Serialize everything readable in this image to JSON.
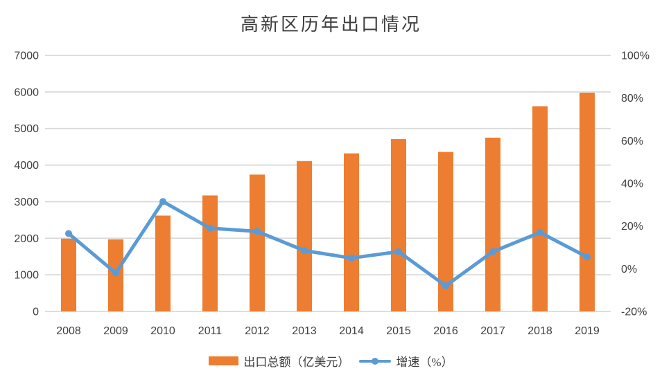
{
  "chart_data": {
    "type": "combo",
    "title": "高新区历年出口情况",
    "categories": [
      "2008",
      "2009",
      "2010",
      "2011",
      "2012",
      "2013",
      "2014",
      "2015",
      "2016",
      "2017",
      "2018",
      "2019"
    ],
    "series": [
      {
        "name": "出口总额（亿美元）",
        "type": "bar",
        "axis": "left",
        "color": "#ED7D31",
        "values": [
          1990,
          1970,
          2620,
          3170,
          3740,
          4110,
          4320,
          4710,
          4360,
          4750,
          5610,
          5980
        ]
      },
      {
        "name": "增速（%）",
        "type": "line",
        "axis": "right",
        "color": "#5B9BD5",
        "values": [
          16.5,
          -2,
          31.5,
          19,
          17.5,
          8.5,
          5,
          8,
          -8,
          8,
          17,
          5.5
        ]
      }
    ],
    "left_axis": {
      "min": 0,
      "max": 7000,
      "tick_values": [
        0,
        1000,
        2000,
        3000,
        4000,
        5000,
        6000,
        7000
      ],
      "tick_labels": [
        "0",
        "1000",
        "2000",
        "3000",
        "4000",
        "5000",
        "6000",
        "7000"
      ]
    },
    "right_axis": {
      "min": -20,
      "max": 100,
      "tick_values": [
        -20,
        0,
        20,
        40,
        60,
        80,
        100
      ],
      "tick_labels": [
        "-20%",
        "0%",
        "20%",
        "40%",
        "60%",
        "80%",
        "100%"
      ]
    },
    "grid": "horizontal-only",
    "legend_position": "bottom",
    "colors": {
      "grid": "#D9D9D9",
      "axis_text": "#3f3f3f",
      "bar": "#ED7D31",
      "line": "#5B9BD5"
    }
  }
}
